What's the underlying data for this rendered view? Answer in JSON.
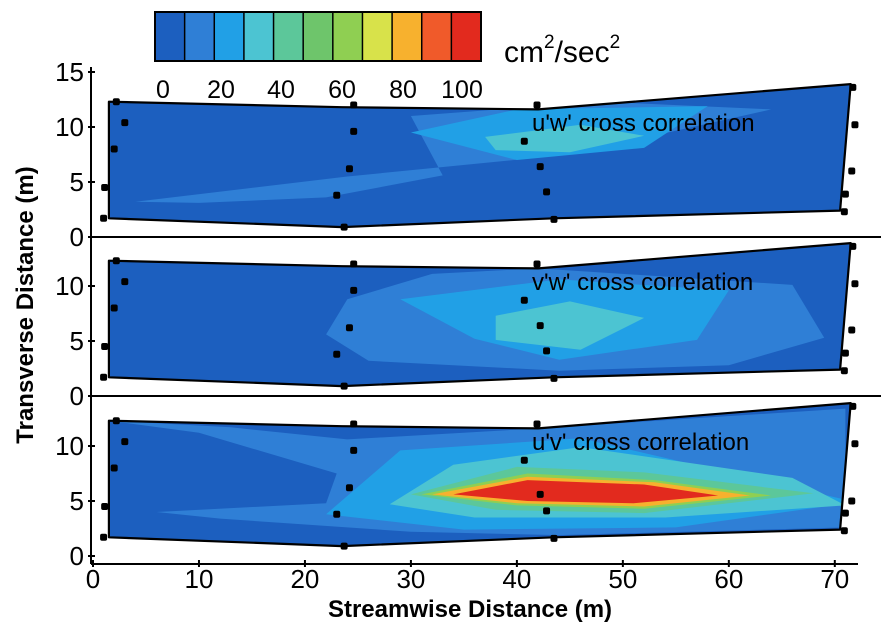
{
  "colorbar": {
    "unit_label": "cm²/sec²",
    "tick_labels": [
      "0",
      "20",
      "40",
      "60",
      "80",
      "100"
    ],
    "range": [
      0,
      100
    ],
    "colors": [
      "#1c5fbf",
      "#2f7fd6",
      "#21a0e6",
      "#4cc4d2",
      "#5cc79a",
      "#6ec56b",
      "#8fcf52",
      "#d8e24a",
      "#f7b12e",
      "#f05a2a",
      "#e22a1e"
    ]
  },
  "chart_data": {
    "type": "heatmap",
    "subtype": "filled contour map, three stacked panels sharing x axis",
    "xlabel": "Streamwise Distance (m)",
    "ylabel": "Transverse Distance (m)",
    "xlim": [
      0,
      72
    ],
    "ylim": [
      0,
      15
    ],
    "x_ticks": [
      "0",
      "10",
      "20",
      "30",
      "40",
      "50",
      "60",
      "70"
    ],
    "y_tick_labels_top_panel": [
      "0",
      "5",
      "10",
      "15"
    ],
    "y_tick_labels_other_panels": [
      "0",
      "5",
      "10"
    ],
    "panels": [
      {
        "title": "u'w' cross correlation",
        "boundary_top": [
          [
            1.5,
            12.3
          ],
          [
            23.5,
            11.8
          ],
          [
            42,
            11.6
          ],
          [
            71.5,
            13.9
          ]
        ],
        "boundary_bottom": [
          [
            1.5,
            1.7
          ],
          [
            23.5,
            0.9
          ],
          [
            43.5,
            1.7
          ],
          [
            70.5,
            2.4
          ]
        ],
        "contours": [
          {
            "level": 10,
            "polygon": [
              [
                4,
                3.2
              ],
              [
                24,
                5.5
              ],
              [
                45,
                7.5
              ],
              [
                64,
                11.6
              ],
              [
                48,
                12.3
              ],
              [
                30,
                11.0
              ],
              [
                33,
                5.6
              ],
              [
                22,
                3.6
              ],
              [
                10,
                3.1
              ]
            ]
          },
          {
            "level": 20,
            "polygon": [
              [
                30,
                9.5
              ],
              [
                40,
                11.6
              ],
              [
                58,
                11.9
              ],
              [
                52,
                8.1
              ],
              [
                40,
                7.0
              ]
            ]
          },
          {
            "level": 30,
            "polygon": [
              [
                37,
                9.1
              ],
              [
                46,
                10.2
              ],
              [
                52,
                9.2
              ],
              [
                45,
                7.7
              ],
              [
                38,
                7.9
              ]
            ]
          }
        ],
        "measurement_points": [
          [
            2.2,
            12.3
          ],
          [
            3.0,
            10.4
          ],
          [
            2.0,
            8.0
          ],
          [
            1.1,
            4.5
          ],
          [
            1.0,
            1.7
          ],
          [
            24.6,
            12.0
          ],
          [
            24.6,
            9.6
          ],
          [
            24.2,
            6.2
          ],
          [
            23.0,
            3.8
          ],
          [
            23.7,
            0.9
          ],
          [
            41.9,
            12.0
          ],
          [
            40.7,
            8.7
          ],
          [
            42.2,
            6.4
          ],
          [
            42.8,
            4.1
          ],
          [
            43.5,
            1.6
          ],
          [
            71.7,
            13.6
          ],
          [
            71.9,
            10.2
          ],
          [
            71.6,
            6.0
          ],
          [
            71.0,
            3.9
          ],
          [
            70.9,
            2.3
          ]
        ]
      },
      {
        "title": "v'w' cross correlation",
        "boundary_top": [
          [
            1.5,
            12.3
          ],
          [
            23.5,
            11.8
          ],
          [
            42,
            11.6
          ],
          [
            71.5,
            13.9
          ]
        ],
        "boundary_bottom": [
          [
            1.5,
            1.7
          ],
          [
            23.5,
            0.9
          ],
          [
            43.5,
            1.7
          ],
          [
            70.5,
            2.4
          ]
        ],
        "contours": [
          {
            "level": 10,
            "polygon": [
              [
                24,
                8.8
              ],
              [
                32,
                11.1
              ],
              [
                42,
                11.6
              ],
              [
                66,
                10.1
              ],
              [
                69,
                5.3
              ],
              [
                60,
                2.8
              ],
              [
                44,
                2.3
              ],
              [
                26,
                3.2
              ],
              [
                22,
                5.6
              ]
            ]
          },
          {
            "level": 20,
            "polygon": [
              [
                29,
                8.8
              ],
              [
                44,
                10.6
              ],
              [
                60,
                9.6
              ],
              [
                57,
                5.1
              ],
              [
                44,
                3.3
              ],
              [
                36,
                5.2
              ]
            ]
          },
          {
            "level": 30,
            "polygon": [
              [
                38,
                7.3
              ],
              [
                45,
                8.6
              ],
              [
                52,
                7.1
              ],
              [
                46,
                4.2
              ],
              [
                38,
                5.1
              ]
            ]
          }
        ],
        "measurement_points": [
          [
            2.2,
            12.3
          ],
          [
            3.0,
            10.4
          ],
          [
            2.0,
            8.0
          ],
          [
            1.1,
            4.5
          ],
          [
            1.0,
            1.7
          ],
          [
            24.6,
            12.0
          ],
          [
            24.6,
            9.6
          ],
          [
            24.2,
            6.2
          ],
          [
            23.0,
            3.8
          ],
          [
            23.7,
            0.9
          ],
          [
            41.9,
            12.0
          ],
          [
            40.7,
            8.7
          ],
          [
            42.2,
            6.4
          ],
          [
            42.8,
            4.1
          ],
          [
            43.5,
            1.6
          ],
          [
            71.7,
            13.6
          ],
          [
            71.9,
            10.2
          ],
          [
            71.6,
            6.0
          ],
          [
            71.0,
            3.9
          ],
          [
            70.9,
            2.3
          ]
        ]
      },
      {
        "title": "u'v' cross correlation",
        "boundary_top": [
          [
            1.5,
            12.3
          ],
          [
            23.5,
            11.8
          ],
          [
            42,
            11.6
          ],
          [
            71.5,
            13.9
          ]
        ],
        "boundary_bottom": [
          [
            1.5,
            1.7
          ],
          [
            23.5,
            0.9
          ],
          [
            43.5,
            1.7
          ],
          [
            70.5,
            2.4
          ]
        ],
        "contours": [
          {
            "level": 10,
            "polygon": [
              [
                1.5,
                12.3
              ],
              [
                13,
                11.7
              ],
              [
                24,
                10.6
              ],
              [
                42,
                11.6
              ],
              [
                71,
                13.4
              ],
              [
                71,
                2.6
              ],
              [
                44,
                1.9
              ],
              [
                30,
                2.2
              ],
              [
                12,
                3.4
              ],
              [
                6,
                4.0
              ],
              [
                22,
                4.8
              ],
              [
                23,
                7.5
              ],
              [
                10,
                11.2
              ]
            ]
          },
          {
            "level": 20,
            "polygon": [
              [
                22,
                3.8
              ],
              [
                29,
                9.6
              ],
              [
                46,
                10.7
              ],
              [
                72,
                4.9
              ],
              [
                55,
                2.6
              ],
              [
                35,
                2.4
              ]
            ]
          },
          {
            "level": 30,
            "polygon": [
              [
                28,
                4.7
              ],
              [
                34,
                8.3
              ],
              [
                46,
                9.9
              ],
              [
                66,
                7.1
              ],
              [
                71,
                4.6
              ],
              [
                54,
                3.5
              ],
              [
                36,
                3.5
              ]
            ]
          },
          {
            "level": 40,
            "polygon": [
              [
                30,
                5.6
              ],
              [
                40,
                8.1
              ],
              [
                52,
                7.6
              ],
              [
                68,
                5.7
              ],
              [
                52,
                3.9
              ],
              [
                38,
                4.2
              ]
            ]
          },
          {
            "level": 60,
            "polygon": [
              [
                31,
                5.6
              ],
              [
                41,
                7.5
              ],
              [
                53,
                6.9
              ],
              [
                64,
                5.5
              ],
              [
                52,
                4.3
              ],
              [
                40,
                4.6
              ]
            ]
          },
          {
            "level": 80,
            "polygon": [
              [
                32,
                5.6
              ],
              [
                41,
                7.2
              ],
              [
                53,
                6.7
              ],
              [
                62,
                5.5
              ],
              [
                52,
                4.5
              ],
              [
                40,
                4.8
              ]
            ]
          },
          {
            "level": 95,
            "polygon": [
              [
                34,
                5.6
              ],
              [
                41,
                6.9
              ],
              [
                52,
                6.5
              ],
              [
                59,
                5.5
              ],
              [
                51,
                4.8
              ],
              [
                41,
                5.0
              ]
            ]
          }
        ],
        "measurement_points": [
          [
            2.2,
            12.3
          ],
          [
            3.0,
            10.4
          ],
          [
            2.0,
            8.0
          ],
          [
            1.1,
            4.5
          ],
          [
            1.0,
            1.7
          ],
          [
            24.6,
            12.0
          ],
          [
            24.6,
            9.6
          ],
          [
            24.2,
            6.2
          ],
          [
            23.0,
            3.8
          ],
          [
            23.7,
            0.9
          ],
          [
            41.9,
            12.0
          ],
          [
            40.7,
            8.7
          ],
          [
            42.2,
            5.6
          ],
          [
            42.8,
            4.1
          ],
          [
            43.5,
            1.6
          ],
          [
            71.7,
            13.6
          ],
          [
            71.9,
            10.2
          ],
          [
            71.6,
            5.0
          ],
          [
            71.0,
            3.9
          ],
          [
            70.9,
            2.3
          ]
        ]
      }
    ]
  }
}
